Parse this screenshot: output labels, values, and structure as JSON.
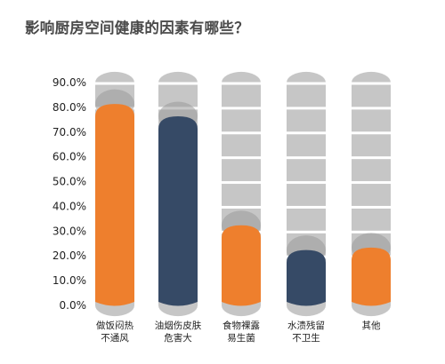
{
  "chart_data": {
    "type": "bar",
    "title": "影响厨房空间健康的因素有哪些？",
    "categories": [
      [
        "做饭闷热",
        "不通风"
      ],
      [
        "油烟伤皮肤",
        "危害大"
      ],
      [
        "食物裸露",
        "易生菌"
      ],
      [
        "水渍残留",
        "不卫生"
      ],
      [
        "其他"
      ]
    ],
    "values": [
      81,
      76,
      32,
      22,
      23
    ],
    "ylim": [
      0,
      90
    ],
    "yticks": [
      "0.0%",
      "10.0%",
      "20.0%",
      "30.0%",
      "40.0%",
      "50.0%",
      "60.0%",
      "70.0%",
      "80.0%",
      "90.0%"
    ],
    "bar_colors": [
      "#ee7f2d",
      "#364a66",
      "#ee7f2d",
      "#364a66",
      "#ee7f2d"
    ],
    "track_color": "#c6c6c6",
    "grid": true
  }
}
